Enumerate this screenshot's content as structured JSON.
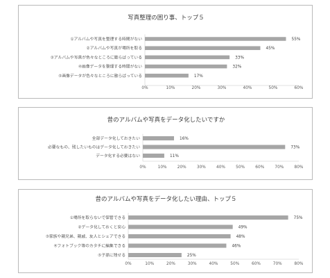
{
  "chart_data": [
    {
      "type": "bar",
      "orientation": "horizontal",
      "title": "写真整理の困り事、トップ５",
      "categories": [
        "①アルバムや写真を整理する時間がない",
        "②アルバムや写真が場所を取る",
        "③アルバムや写真が色々なところに散らばっている",
        "④画像データを整理する時間がない",
        "⑤画像データが色々なところに散らばっている"
      ],
      "values": [
        55,
        45,
        33,
        32,
        17
      ],
      "value_labels": [
        "55%",
        "45%",
        "33%",
        "32%",
        "17%"
      ],
      "ticks": [
        "0%",
        "10%",
        "20%",
        "30%",
        "40%",
        "50%",
        "60%"
      ],
      "xlim": [
        0,
        60
      ],
      "color": "#a6a6a6"
    },
    {
      "type": "bar",
      "orientation": "horizontal",
      "title": "昔のアルバムや写真をデータ化したいですか",
      "categories": [
        "全部データ化しておきたい",
        "必要なもの、残したいものはデータ化しておきたい",
        "データ化する必要はない"
      ],
      "values": [
        16,
        73,
        11
      ],
      "value_labels": [
        "16%",
        "73%",
        "11%"
      ],
      "ticks": [
        "0%",
        "10%",
        "20%",
        "30%",
        "40%",
        "50%",
        "60%",
        "70%",
        "80%"
      ],
      "xlim": [
        0,
        80
      ],
      "color": "#a6a6a6"
    },
    {
      "type": "bar",
      "orientation": "horizontal",
      "title": "昔のアルバムや写真をデータ化したい理由、トップ５",
      "categories": [
        "①場所を取らないで保管できる",
        "②データ化しておくと安心",
        "③家族や親兄弟、親戚、友人とシェアできる",
        "④フォトブック等のカタチに編集できる",
        "⑤子孫に残せる"
      ],
      "values": [
        75,
        49,
        48,
        46,
        25
      ],
      "value_labels": [
        "75%",
        "49%",
        "48%",
        "46%",
        "25%"
      ],
      "ticks": [
        "0%",
        "10%",
        "20%",
        "30%",
        "40%",
        "50%",
        "60%",
        "70%",
        "80%"
      ],
      "xlim": [
        0,
        80
      ],
      "color": "#a6a6a6"
    }
  ]
}
